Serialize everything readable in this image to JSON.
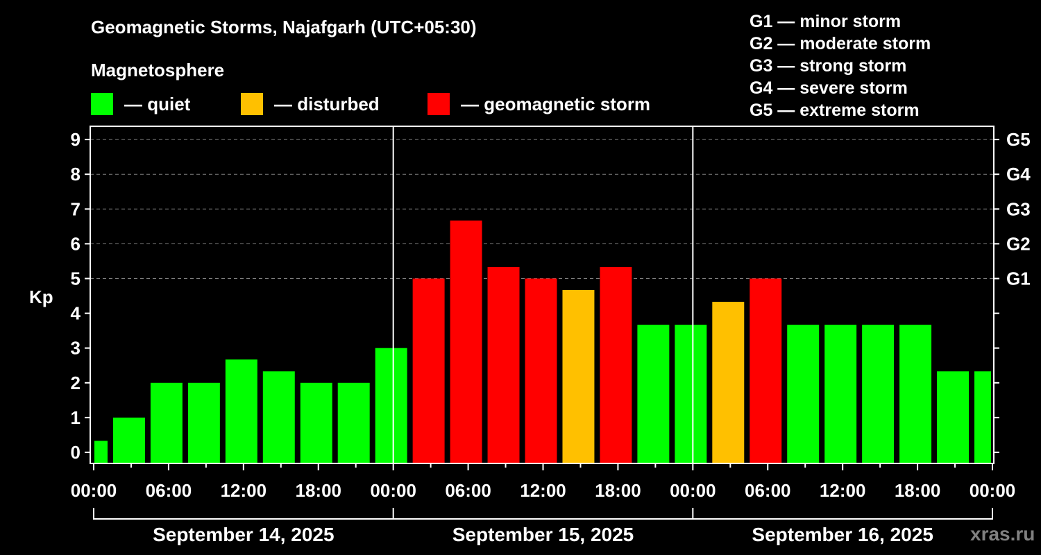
{
  "title": "Geomagnetic Storms, Najafgarh (UTC+05:30)",
  "subtitle": "Magnetosphere",
  "legend": [
    {
      "label": "— quiet",
      "color": "#00ff00"
    },
    {
      "label": "— disturbed",
      "color": "#ffc000"
    },
    {
      "label": "— geomagnetic storm",
      "color": "#ff0000"
    }
  ],
  "g_scale": [
    "G1 — minor storm",
    "G2 — moderate storm",
    "G3 — strong storm",
    "G4 — severe storm",
    "G5 — extreme storm"
  ],
  "watermark": "xras.ru",
  "chart_data": {
    "type": "bar",
    "title": "Geomagnetic Storms, Najafgarh (UTC+05:30)",
    "xlabel": "",
    "ylabel": "Kp",
    "ylim": [
      0,
      9
    ],
    "yticks": [
      0,
      1,
      2,
      3,
      4,
      5,
      6,
      7,
      8,
      9
    ],
    "right_axis_labels": [
      {
        "kp": 5,
        "label": "G1"
      },
      {
        "kp": 6,
        "label": "G2"
      },
      {
        "kp": 7,
        "label": "G3"
      },
      {
        "kp": 8,
        "label": "G4"
      },
      {
        "kp": 9,
        "label": "G5"
      }
    ],
    "xtick_labels": [
      "00:00",
      "06:00",
      "12:00",
      "18:00",
      "00:00",
      "06:00",
      "12:00",
      "18:00",
      "00:00",
      "06:00",
      "12:00",
      "18:00",
      "00:00"
    ],
    "date_labels": [
      "September 14, 2025",
      "September 15, 2025",
      "September 16, 2025"
    ],
    "grid": "dashed horizontal at Kp 5-9",
    "categories": [
      "Sep14 00:00-01:30",
      "Sep14 01:30-04:30",
      "Sep14 04:30-07:30",
      "Sep14 07:30-10:30",
      "Sep14 10:30-13:30",
      "Sep14 13:30-16:30",
      "Sep14 16:30-19:30",
      "Sep14 19:30-22:30",
      "Sep14 22:30-01:30",
      "Sep15 01:30-04:30",
      "Sep15 04:30-07:30",
      "Sep15 07:30-10:30",
      "Sep15 10:30-13:30",
      "Sep15 13:30-16:30",
      "Sep15 16:30-19:30",
      "Sep15 19:30-22:30",
      "Sep15 22:30-01:30",
      "Sep16 01:30-04:30",
      "Sep16 04:30-07:30",
      "Sep16 07:30-10:30",
      "Sep16 10:30-13:30",
      "Sep16 13:30-16:30",
      "Sep16 16:30-19:30",
      "Sep16 19:30-22:30",
      "Sep16 22:30-00:00"
    ],
    "values": [
      0.33,
      1,
      2,
      2,
      2.67,
      2.33,
      2,
      2,
      3,
      5,
      6.67,
      5.33,
      5,
      4.67,
      5.33,
      3.67,
      3.67,
      4.33,
      5,
      3.67,
      3.67,
      3.67,
      3.67,
      2.33,
      2.33
    ],
    "colors": [
      "#00ff00",
      "#00ff00",
      "#00ff00",
      "#00ff00",
      "#00ff00",
      "#00ff00",
      "#00ff00",
      "#00ff00",
      "#00ff00",
      "#ff0000",
      "#ff0000",
      "#ff0000",
      "#ff0000",
      "#ffc000",
      "#ff0000",
      "#00ff00",
      "#00ff00",
      "#ffc000",
      "#ff0000",
      "#00ff00",
      "#00ff00",
      "#00ff00",
      "#00ff00",
      "#00ff00",
      "#00ff00"
    ]
  }
}
